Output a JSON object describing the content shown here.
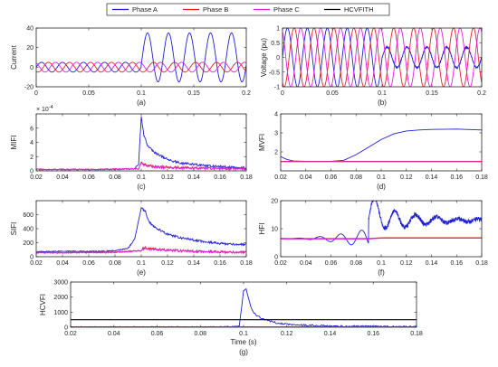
{
  "legend": {
    "placement": "top-center",
    "entries": [
      {
        "label": "Phase A",
        "color": "#1f1fd6"
      },
      {
        "label": "Phase B",
        "color": "#e8202a"
      },
      {
        "label": "Phase C",
        "color": "#e020e0"
      },
      {
        "label": "HCVFITH",
        "color": "#000000"
      }
    ]
  },
  "chart_data": [
    {
      "id": "a",
      "type": "line",
      "caption": "(a)",
      "ylabel": "Current",
      "xlabel": "",
      "xlim": [
        0,
        0.2
      ],
      "ylim": [
        -20,
        40
      ],
      "xticks": [
        0,
        0.05,
        0.1,
        0.15,
        0.2
      ],
      "xtick_labels": [
        "0",
        "0.05",
        "0.1",
        "0.15",
        "0.2"
      ],
      "yticks": [
        -20,
        0,
        20,
        40
      ],
      "ytick_labels": [
        "-20",
        "0",
        "20",
        "40"
      ],
      "series": [
        {
          "name": "Phase A",
          "signal": "fault-current-A",
          "freq_hz": 50,
          "pre_fault_amplitude": 5,
          "fault_time": 0.1,
          "fault_peak": 35,
          "fault_trough": -15
        },
        {
          "name": "Phase B",
          "signal": "sinusoid",
          "freq_hz": 50,
          "amplitude": 5,
          "phase_deg": -120
        },
        {
          "name": "Phase C",
          "signal": "sinusoid",
          "freq_hz": 50,
          "amplitude": 5,
          "phase_deg": 120
        }
      ]
    },
    {
      "id": "b",
      "type": "line",
      "caption": "(b)",
      "ylabel": "Voltage (pu)",
      "xlabel": "",
      "xlim": [
        0,
        0.2
      ],
      "ylim": [
        -1,
        1
      ],
      "xticks": [
        0,
        0.05,
        0.1,
        0.15,
        0.2
      ],
      "xtick_labels": [
        "0",
        "0.05",
        "0.1",
        "0.15",
        "0.2"
      ],
      "yticks": [
        -1,
        -0.5,
        0,
        0.5,
        1
      ],
      "ytick_labels": [
        "-1",
        "-0.5",
        "0",
        "0.5",
        "1"
      ],
      "series": [
        {
          "name": "Phase A",
          "signal": "voltage-sag-A",
          "freq_hz": 50,
          "amplitude": 1,
          "fault_time": 0.1,
          "sag_amplitude": 0.35
        },
        {
          "name": "Phase B",
          "signal": "sinusoid",
          "freq_hz": 50,
          "amplitude": 1,
          "phase_deg": -120
        },
        {
          "name": "Phase C",
          "signal": "sinusoid",
          "freq_hz": 50,
          "amplitude": 1,
          "phase_deg": 120
        }
      ]
    },
    {
      "id": "c",
      "type": "line",
      "caption": "(c)",
      "ylabel": "MIFI",
      "xlabel": "",
      "y_multiplier": "× 10",
      "y_multiplier_exp": "-4",
      "xlim": [
        0.02,
        0.18
      ],
      "ylim": [
        0,
        8
      ],
      "xticks": [
        0.02,
        0.04,
        0.06,
        0.08,
        0.1,
        0.12,
        0.14,
        0.16,
        0.18
      ],
      "xtick_labels": [
        "0.02",
        "0.04",
        "0.06",
        "0.08",
        "0.1",
        "0.12",
        "0.14",
        "0.16",
        "0.18"
      ],
      "yticks": [
        0,
        2,
        4,
        6
      ],
      "ytick_labels": [
        "0",
        "2",
        "4",
        "6"
      ],
      "series": [
        {
          "name": "Phase A",
          "x": [
            0.02,
            0.04,
            0.06,
            0.08,
            0.095,
            0.098,
            0.1,
            0.102,
            0.105,
            0.11,
            0.12,
            0.13,
            0.14,
            0.15,
            0.16,
            0.17,
            0.18
          ],
          "y": [
            0.2,
            0.2,
            0.2,
            0.2,
            0.3,
            1.0,
            7.6,
            5.0,
            3.5,
            2.6,
            1.6,
            1.1,
            0.9,
            0.7,
            0.6,
            0.5,
            0.4
          ]
        },
        {
          "name": "Phase B",
          "x": [
            0.02,
            0.06,
            0.098,
            0.1,
            0.102,
            0.11,
            0.14,
            0.18
          ],
          "y": [
            0.2,
            0.2,
            0.3,
            1.2,
            0.9,
            0.6,
            0.4,
            0.3
          ]
        },
        {
          "name": "Phase C",
          "x": [
            0.02,
            0.06,
            0.098,
            0.1,
            0.102,
            0.11,
            0.14,
            0.18
          ],
          "y": [
            0.2,
            0.2,
            0.3,
            1.1,
            0.8,
            0.5,
            0.35,
            0.3
          ]
        }
      ]
    },
    {
      "id": "d",
      "type": "line",
      "caption": "(d)",
      "ylabel": "MVFI",
      "xlabel": "",
      "xlim": [
        0.02,
        0.18
      ],
      "ylim": [
        1,
        4
      ],
      "xticks": [
        0.02,
        0.04,
        0.06,
        0.08,
        0.1,
        0.12,
        0.14,
        0.16,
        0.18
      ],
      "xtick_labels": [
        "0.02",
        "0.04",
        "0.06",
        "0.08",
        "0.1",
        "0.12",
        "0.14",
        "0.16",
        "0.18"
      ],
      "yticks": [
        2,
        3,
        4
      ],
      "ytick_labels": [
        "2",
        "3",
        "4"
      ],
      "series": [
        {
          "name": "Phase A",
          "x": [
            0.02,
            0.025,
            0.03,
            0.04,
            0.06,
            0.07,
            0.08,
            0.09,
            0.1,
            0.11,
            0.12,
            0.13,
            0.14,
            0.16,
            0.18
          ],
          "y": [
            1.75,
            1.6,
            1.52,
            1.5,
            1.5,
            1.55,
            1.85,
            2.25,
            2.65,
            2.95,
            3.1,
            3.15,
            3.18,
            3.2,
            3.15
          ]
        },
        {
          "name": "Phase B",
          "x": [
            0.02,
            0.18
          ],
          "y": [
            1.5,
            1.5
          ]
        },
        {
          "name": "Phase C",
          "x": [
            0.02,
            0.18
          ],
          "y": [
            1.48,
            1.48
          ]
        }
      ]
    },
    {
      "id": "e",
      "type": "line",
      "caption": "(e)",
      "ylabel": "SIFI",
      "xlabel": "",
      "xlim": [
        0.02,
        0.18
      ],
      "ylim": [
        0,
        800
      ],
      "xticks": [
        0.02,
        0.04,
        0.06,
        0.08,
        0.1,
        0.12,
        0.14,
        0.16,
        0.18
      ],
      "xtick_labels": [
        "0.02",
        "0.04",
        "0.06",
        "0.08",
        "0.1",
        "0.12",
        "0.14",
        "0.16",
        "0.18"
      ],
      "yticks": [
        0,
        200,
        400,
        600
      ],
      "ytick_labels": [
        "0",
        "200",
        "400",
        "600"
      ],
      "series": [
        {
          "name": "Phase A",
          "x": [
            0.02,
            0.04,
            0.06,
            0.08,
            0.09,
            0.095,
            0.1,
            0.103,
            0.106,
            0.11,
            0.12,
            0.13,
            0.14,
            0.15,
            0.16,
            0.17,
            0.18
          ],
          "y": [
            70,
            80,
            75,
            85,
            120,
            250,
            700,
            650,
            500,
            420,
            320,
            270,
            240,
            210,
            190,
            180,
            170
          ]
        },
        {
          "name": "Phase B",
          "x": [
            0.02,
            0.04,
            0.06,
            0.08,
            0.1,
            0.102,
            0.11,
            0.12,
            0.14,
            0.16,
            0.18
          ],
          "y": [
            60,
            60,
            62,
            65,
            90,
            130,
            110,
            95,
            80,
            70,
            65
          ]
        },
        {
          "name": "Phase C",
          "x": [
            0.02,
            0.04,
            0.06,
            0.08,
            0.1,
            0.102,
            0.11,
            0.12,
            0.14,
            0.16,
            0.18
          ],
          "y": [
            55,
            55,
            58,
            60,
            85,
            120,
            100,
            90,
            75,
            65,
            60
          ]
        }
      ]
    },
    {
      "id": "f",
      "type": "line",
      "caption": "(f)",
      "ylabel": "HFI",
      "xlabel": "",
      "xlim": [
        0.02,
        0.18
      ],
      "ylim": [
        0,
        20
      ],
      "xticks": [
        0.02,
        0.04,
        0.06,
        0.08,
        0.1,
        0.12,
        0.14,
        0.16,
        0.18
      ],
      "xtick_labels": [
        "0.02",
        "0.04",
        "0.06",
        "0.08",
        "0.1",
        "0.12",
        "0.14",
        "0.16",
        "0.18"
      ],
      "yticks": [
        0,
        10,
        20
      ],
      "ytick_labels": [
        "0",
        "10",
        "20"
      ],
      "series": [
        {
          "name": "Phase A",
          "signal": "hfi-A",
          "pre_fault_level": 6.5,
          "fault_time": 0.09,
          "post_fault_level": 13,
          "post_fault_peak": 19
        },
        {
          "name": "Phase B",
          "x": [
            0.02,
            0.09,
            0.1,
            0.18
          ],
          "y": [
            6.5,
            6.5,
            6.8,
            6.8
          ]
        },
        {
          "name": "Phase C",
          "x": [
            0.02,
            0.09,
            0.1,
            0.18
          ],
          "y": [
            6.3,
            6.3,
            6.6,
            6.6
          ]
        }
      ]
    },
    {
      "id": "g",
      "type": "line",
      "caption": "(g)",
      "ylabel": "HCVFI",
      "xlabel": "Time (s)",
      "xlim": [
        0.02,
        0.18
      ],
      "ylim": [
        0,
        3000
      ],
      "xticks": [
        0.02,
        0.04,
        0.06,
        0.08,
        0.1,
        0.12,
        0.14,
        0.16,
        0.18
      ],
      "xtick_labels": [
        "0.02",
        "0.04",
        "0.06",
        "0.08",
        "0.1",
        "0.12",
        "0.14",
        "0.16",
        "0.18"
      ],
      "yticks": [
        0,
        1000,
        2000,
        3000
      ],
      "ytick_labels": [
        "0",
        "1000",
        "2000",
        "3000"
      ],
      "series": [
        {
          "name": "Phase A",
          "x": [
            0.02,
            0.06,
            0.09,
            0.098,
            0.1,
            0.101,
            0.103,
            0.105,
            0.108,
            0.11,
            0.115,
            0.12,
            0.13,
            0.14,
            0.15,
            0.16,
            0.18
          ],
          "y": [
            20,
            20,
            25,
            60,
            2400,
            2600,
            1500,
            900,
            600,
            500,
            300,
            200,
            120,
            80,
            60,
            40,
            30
          ]
        },
        {
          "name": "Phase B",
          "x": [
            0.02,
            0.18
          ],
          "y": [
            25,
            25
          ]
        },
        {
          "name": "Phase C",
          "x": [
            0.02,
            0.18
          ],
          "y": [
            20,
            20
          ]
        },
        {
          "name": "HCVFITH",
          "x": [
            0.02,
            0.18
          ],
          "y": [
            500,
            500
          ]
        }
      ]
    }
  ]
}
